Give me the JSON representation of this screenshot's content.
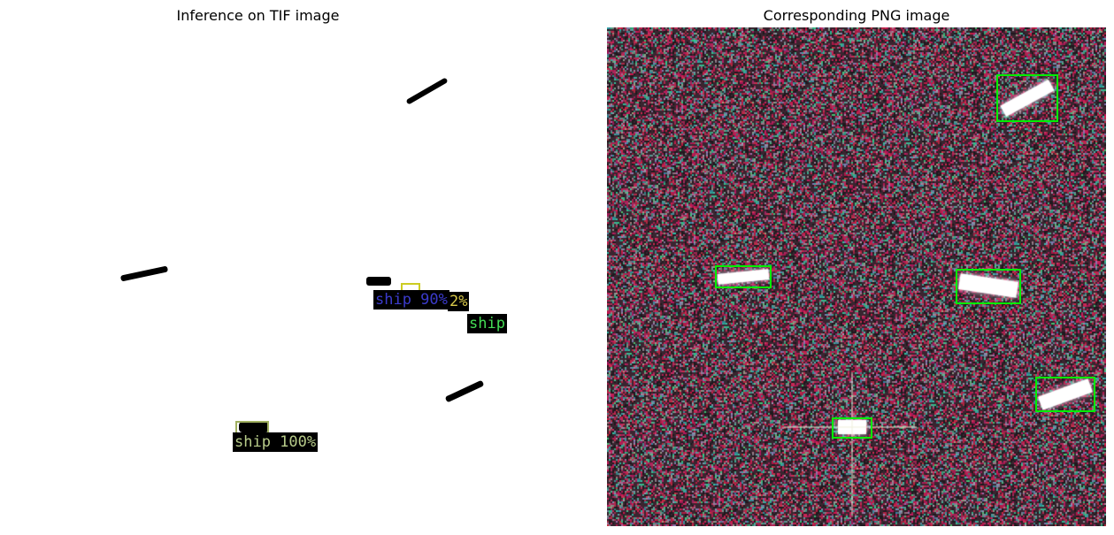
{
  "left": {
    "title": "Inference on TIF image",
    "labels": [
      {
        "id": "l1",
        "text": "ship 90%",
        "color": "#3b3bcc"
      },
      {
        "id": "l2",
        "text": "2%",
        "color": "#d8c84a"
      },
      {
        "id": "l3",
        "text": "ship",
        "color": "#44dd55"
      },
      {
        "id": "l4",
        "text": "ship 100%",
        "color": "#b8cc8a"
      }
    ]
  },
  "right": {
    "title": "Corresponding PNG image",
    "box_color": "#00ee00",
    "background_colors": [
      "#3a2530",
      "#c21850",
      "#33aa88",
      "#8a8a9a"
    ]
  }
}
